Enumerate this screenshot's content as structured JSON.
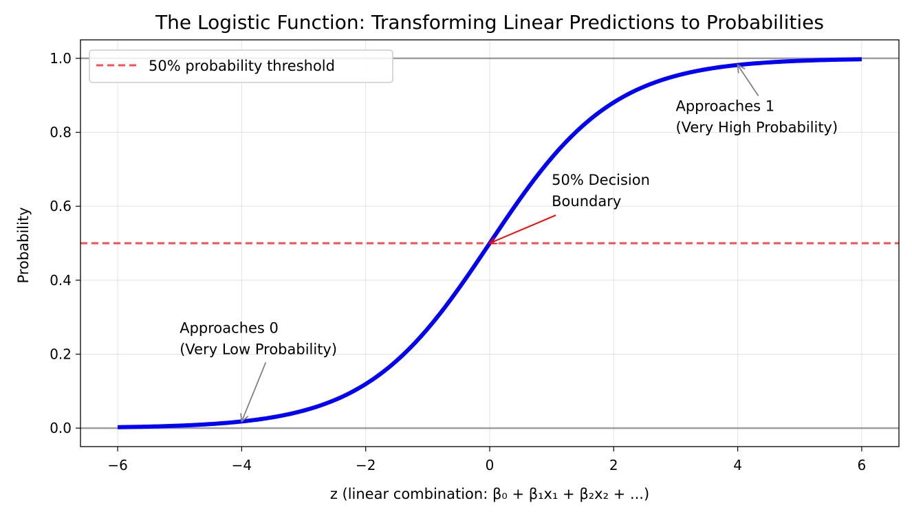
{
  "chart_data": {
    "type": "line",
    "title": "The Logistic Function: Transforming Linear Predictions to Probabilities",
    "xlabel": "z (linear combination: β₀ + β₁x₁ + β₂x₂ + ...)",
    "ylabel": "Probability",
    "xlim": [
      -6.6,
      6.6
    ],
    "ylim": [
      -0.05,
      1.05
    ],
    "grid": true,
    "xticks": [
      -6,
      -4,
      -2,
      0,
      2,
      4,
      6
    ],
    "xtick_labels": [
      "−6",
      "−4",
      "−2",
      "0",
      "2",
      "4",
      "6"
    ],
    "yticks": [
      0.0,
      0.2,
      0.4,
      0.6,
      0.8,
      1.0
    ],
    "ytick_labels": [
      "0.0",
      "0.2",
      "0.4",
      "0.6",
      "0.8",
      "1.0"
    ],
    "series": [
      {
        "kind": "logistic",
        "color": "#0000ff",
        "x": [
          -6,
          -5.5,
          -5,
          -4.5,
          -4,
          -3.5,
          -3,
          -2.5,
          -2,
          -1.5,
          -1,
          -0.5,
          0,
          0.5,
          1,
          1.5,
          2,
          2.5,
          3,
          3.5,
          4,
          4.5,
          5,
          5.5,
          6
        ],
        "y": [
          0.0025,
          0.0041,
          0.0067,
          0.011,
          0.018,
          0.0293,
          0.0474,
          0.0759,
          0.1192,
          0.1824,
          0.2689,
          0.3775,
          0.5,
          0.6225,
          0.7311,
          0.8176,
          0.8808,
          0.9241,
          0.9526,
          0.9707,
          0.982,
          0.989,
          0.9933,
          0.9959,
          0.9975
        ]
      }
    ],
    "reference_lines": [
      {
        "kind": "horizontal",
        "y": 0.5,
        "color": "#ff0000",
        "style": "dashed",
        "legend": "50% probability threshold"
      },
      {
        "kind": "horizontal",
        "y": 0.0,
        "color": "#808080",
        "style": "solid"
      },
      {
        "kind": "horizontal",
        "y": 1.0,
        "color": "#808080",
        "style": "solid"
      }
    ],
    "legend_position": "top-left",
    "legend_entries": [
      "50% probability threshold"
    ],
    "annotations": [
      {
        "lines": [
          "50% Decision",
          "Boundary"
        ],
        "text_at": [
          1,
          0.6
        ],
        "arrow_to": [
          0,
          0.5
        ],
        "color": "#ff0000"
      },
      {
        "lines": [
          "Approaches 0",
          "(Very Low Probability)"
        ],
        "text_at": [
          -5,
          0.2
        ],
        "arrow_to": [
          -4,
          0.018
        ],
        "color": "#808080"
      },
      {
        "lines": [
          "Approaches 1",
          "(Very High Probability)"
        ],
        "text_at": [
          3,
          0.8
        ],
        "arrow_to": [
          4,
          0.982
        ],
        "color": "#808080"
      }
    ]
  }
}
